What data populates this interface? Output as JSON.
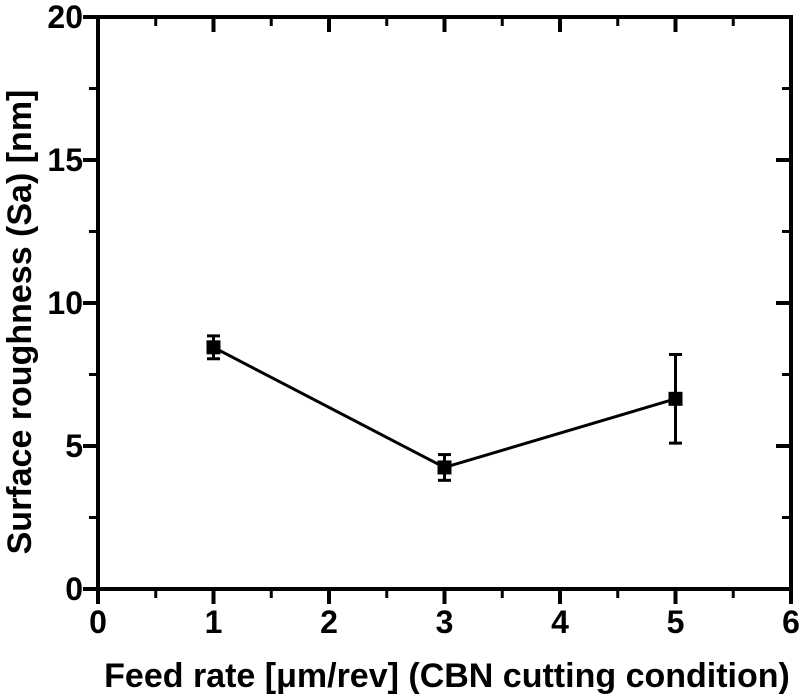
{
  "figure": {
    "background": "#ffffff",
    "axis_color": "#000000",
    "marker_color": "#000000"
  },
  "chart_data": {
    "type": "line",
    "title": "",
    "xlabel": "Feed rate [μm/rev] (CBN cutting condition)",
    "ylabel": "Surface roughness (Sa) [nm]",
    "xlim": [
      0,
      6
    ],
    "ylim": [
      0,
      20
    ],
    "x_major_ticks": [
      0,
      1,
      2,
      3,
      4,
      5,
      6
    ],
    "x_minor_ticks": [
      0.5,
      1.5,
      2.5,
      3.5,
      4.5,
      5.5
    ],
    "y_major_ticks": [
      0,
      5,
      10,
      15,
      20
    ],
    "y_minor_ticks": [
      2.5,
      7.5,
      12.5,
      17.5
    ],
    "grid": false,
    "legend": "none",
    "frame": "box",
    "series": [
      {
        "name": "Surface roughness (Sa)",
        "marker": "filled-square",
        "color": "#000000",
        "x": [
          1,
          3,
          5
        ],
        "y": [
          8.45,
          4.25,
          6.65
        ],
        "yerr": [
          0.4,
          0.45,
          1.55
        ]
      }
    ]
  }
}
